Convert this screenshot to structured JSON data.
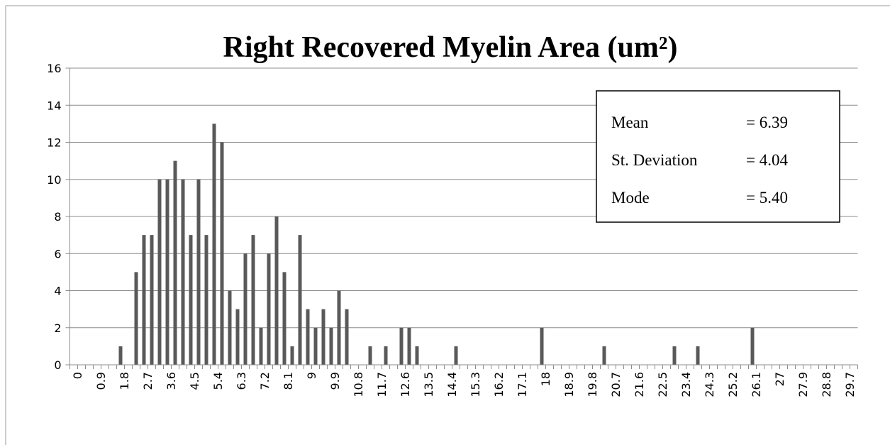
{
  "chart_data": {
    "type": "bar",
    "title": "Right Recovered Myelin Area (um²)",
    "categories": [
      "0",
      null,
      null,
      "0.9",
      null,
      null,
      "1.8",
      null,
      null,
      "2.7",
      null,
      null,
      "3.6",
      null,
      null,
      "4.5",
      null,
      null,
      "5.4",
      null,
      null,
      "6.3",
      null,
      null,
      "7.2",
      null,
      null,
      "8.1",
      null,
      null,
      "9",
      null,
      null,
      "9.9",
      null,
      null,
      "10.8",
      null,
      null,
      "11.7",
      null,
      null,
      "12.6",
      null,
      null,
      "13.5",
      null,
      null,
      "14.4",
      null,
      null,
      "15.3",
      null,
      null,
      "16.2",
      null,
      null,
      "17.1",
      null,
      null,
      "18",
      null,
      null,
      "18.9",
      null,
      null,
      "19.8",
      null,
      null,
      "20.7",
      null,
      null,
      "21.6",
      null,
      null,
      "22.5",
      null,
      null,
      "23.4",
      null,
      null,
      "24.3",
      null,
      null,
      "25.2",
      null,
      null,
      "26.1",
      null,
      null,
      "27",
      null,
      null,
      "27.9",
      null,
      null,
      "28.8",
      null,
      null,
      "29.7",
      null
    ],
    "values": [
      0,
      0,
      0,
      0,
      0,
      0,
      1,
      0,
      5,
      7,
      7,
      10,
      10,
      11,
      10,
      7,
      10,
      7,
      13,
      12,
      4,
      3,
      6,
      7,
      2,
      6,
      8,
      5,
      1,
      7,
      3,
      2,
      3,
      2,
      4,
      3,
      0,
      0,
      1,
      0,
      1,
      0,
      2,
      2,
      1,
      0,
      0,
      0,
      0,
      1,
      0,
      0,
      0,
      0,
      0,
      0,
      0,
      0,
      0,
      0,
      2,
      0,
      0,
      0,
      0,
      0,
      0,
      0,
      1,
      0,
      0,
      0,
      0,
      0,
      0,
      0,
      0,
      1,
      0,
      0,
      1,
      0,
      0,
      0,
      0,
      0,
      0,
      2,
      0,
      0,
      0,
      0,
      0,
      0,
      0,
      0,
      0,
      0,
      0,
      0,
      0
    ],
    "color": "#595959",
    "ylim": [
      0,
      16
    ],
    "yticks": [
      0,
      2,
      4,
      6,
      8,
      10,
      12,
      14,
      16
    ],
    "grid": true,
    "stats": [
      {
        "label": "Mean",
        "value": "= 6.39"
      },
      {
        "label": "St. Deviation",
        "value": "= 4.04"
      },
      {
        "label": "Mode",
        "value": "= 5.40"
      }
    ]
  }
}
